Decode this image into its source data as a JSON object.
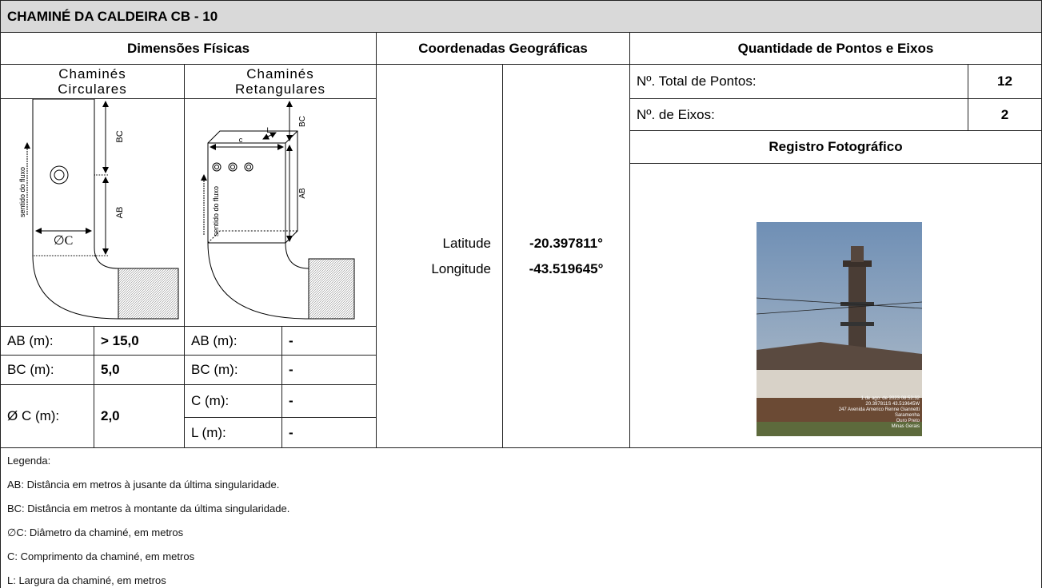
{
  "header": {
    "title": "CHAMINÉ DA CALDEIRA CB - 10"
  },
  "sections": {
    "dimensions": "Dimensões Físicas",
    "coordinates": "Coordenadas Geográficas",
    "points": "Quantidade de Pontos e Eixos"
  },
  "circular": {
    "title": "Chaminés Circulares",
    "diagram": {
      "flow": "sentido do fluxo",
      "bc": "BC",
      "ab": "AB",
      "diameter": "∅C"
    },
    "rows": [
      [
        "AB (m):",
        "> 15,0"
      ],
      [
        "BC (m):",
        "5,0"
      ],
      [
        "Ø C (m):",
        "2,0"
      ]
    ]
  },
  "rectangular": {
    "title": "Chaminés Retangulares",
    "diagram": {
      "flow": "sentido do fluxo",
      "c": "c",
      "l": "L",
      "bc": "BC",
      "ab": "AB"
    },
    "rows": [
      [
        "AB (m):",
        "-"
      ],
      [
        "BC (m):",
        "-"
      ],
      [
        "C (m):",
        "-"
      ],
      [
        "L (m):",
        "-"
      ]
    ]
  },
  "coordinates": {
    "rows": [
      [
        "Latitude",
        "-20.397811°"
      ],
      [
        "Longitude",
        "-43.519645°"
      ]
    ]
  },
  "points": {
    "rows": [
      [
        "Nº. Total de Pontos:",
        "12"
      ],
      [
        "Nº. de Eixos:",
        "2"
      ]
    ],
    "photo_title": "Registro Fotográfico",
    "photo_stamp": [
      "1 de ago. de 2023 08:52:32",
      "20.397811S 43.519645W",
      "247 Avenida Americo Renne Giannetti",
      "Saramenha",
      "Ouro Preto",
      "Minas Gerais"
    ]
  },
  "legend": {
    "title": "Legenda:",
    "items": [
      "AB: Distância em metros à jusante da última singularidade.",
      "BC: Distância em metros à montante da última singularidade.",
      "∅C: Diâmetro da chaminé, em metros",
      "C: Comprimento da chaminé, em metros",
      "L: Largura da chaminé, em metros"
    ]
  }
}
